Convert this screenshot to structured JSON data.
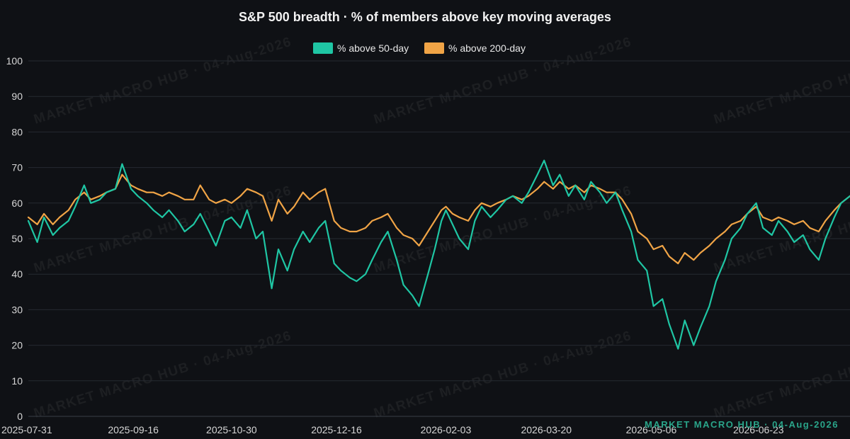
{
  "watermark": "MARKET MACRO HUB · 04-Aug-2026",
  "chart_data": {
    "type": "line",
    "title": "S&P 500 breadth · % of members above key moving averages",
    "xlabel": "",
    "ylabel": "",
    "ylim": [
      0,
      100
    ],
    "yticks": [
      0,
      10,
      20,
      30,
      40,
      50,
      60,
      70,
      80,
      90,
      100
    ],
    "xlim": [
      "2025-07-31",
      "2026-08-03"
    ],
    "xticks": [
      "2025-07-31",
      "2025-09-16",
      "2025-10-30",
      "2025-12-16",
      "2026-02-03",
      "2026-03-20",
      "2026-05-06",
      "2026-06-23"
    ],
    "legend_position": "top-center",
    "grid": true,
    "series": [
      {
        "name": "% above 50-day",
        "color": "#1fc6a4",
        "points": [
          [
            "2025-07-31",
            55
          ],
          [
            "2025-08-04",
            49
          ],
          [
            "2025-08-07",
            56
          ],
          [
            "2025-08-11",
            51
          ],
          [
            "2025-08-14",
            53
          ],
          [
            "2025-08-18",
            55
          ],
          [
            "2025-08-21",
            59
          ],
          [
            "2025-08-25",
            65
          ],
          [
            "2025-08-28",
            60
          ],
          [
            "2025-09-01",
            61
          ],
          [
            "2025-09-04",
            63
          ],
          [
            "2025-09-08",
            64
          ],
          [
            "2025-09-11",
            71
          ],
          [
            "2025-09-15",
            64
          ],
          [
            "2025-09-18",
            62
          ],
          [
            "2025-09-22",
            60
          ],
          [
            "2025-09-25",
            58
          ],
          [
            "2025-09-29",
            56
          ],
          [
            "2025-10-02",
            58
          ],
          [
            "2025-10-06",
            55
          ],
          [
            "2025-10-09",
            52
          ],
          [
            "2025-10-13",
            54
          ],
          [
            "2025-10-16",
            57
          ],
          [
            "2025-10-20",
            52
          ],
          [
            "2025-10-23",
            48
          ],
          [
            "2025-10-27",
            55
          ],
          [
            "2025-10-30",
            56
          ],
          [
            "2025-11-03",
            53
          ],
          [
            "2025-11-06",
            58
          ],
          [
            "2025-11-10",
            50
          ],
          [
            "2025-11-13",
            52
          ],
          [
            "2025-11-17",
            36
          ],
          [
            "2025-11-20",
            47
          ],
          [
            "2025-11-24",
            41
          ],
          [
            "2025-11-27",
            47
          ],
          [
            "2025-12-01",
            52
          ],
          [
            "2025-12-04",
            49
          ],
          [
            "2025-12-08",
            53
          ],
          [
            "2025-12-11",
            55
          ],
          [
            "2025-12-15",
            43
          ],
          [
            "2025-12-18",
            41
          ],
          [
            "2025-12-22",
            39
          ],
          [
            "2025-12-25",
            38
          ],
          [
            "2025-12-29",
            40
          ],
          [
            "2026-01-01",
            44
          ],
          [
            "2026-01-05",
            49
          ],
          [
            "2026-01-08",
            52
          ],
          [
            "2026-01-12",
            44
          ],
          [
            "2026-01-15",
            37
          ],
          [
            "2026-01-19",
            34
          ],
          [
            "2026-01-22",
            31
          ],
          [
            "2026-01-26",
            40
          ],
          [
            "2026-01-29",
            47
          ],
          [
            "2026-02-01",
            55
          ],
          [
            "2026-02-03",
            58
          ],
          [
            "2026-02-06",
            54
          ],
          [
            "2026-02-09",
            50
          ],
          [
            "2026-02-13",
            47
          ],
          [
            "2026-02-16",
            55
          ],
          [
            "2026-02-19",
            59
          ],
          [
            "2026-02-23",
            56
          ],
          [
            "2026-02-26",
            58
          ],
          [
            "2026-03-02",
            61
          ],
          [
            "2026-03-05",
            62
          ],
          [
            "2026-03-09",
            60
          ],
          [
            "2026-03-12",
            63
          ],
          [
            "2026-03-16",
            68
          ],
          [
            "2026-03-19",
            72
          ],
          [
            "2026-03-23",
            65
          ],
          [
            "2026-03-26",
            68
          ],
          [
            "2026-03-30",
            62
          ],
          [
            "2026-04-02",
            65
          ],
          [
            "2026-04-06",
            61
          ],
          [
            "2026-04-09",
            66
          ],
          [
            "2026-04-13",
            63
          ],
          [
            "2026-04-16",
            60
          ],
          [
            "2026-04-20",
            63
          ],
          [
            "2026-04-23",
            58
          ],
          [
            "2026-04-27",
            52
          ],
          [
            "2026-04-30",
            44
          ],
          [
            "2026-05-04",
            41
          ],
          [
            "2026-05-07",
            31
          ],
          [
            "2026-05-11",
            33
          ],
          [
            "2026-05-14",
            26
          ],
          [
            "2026-05-18",
            19
          ],
          [
            "2026-05-21",
            27
          ],
          [
            "2026-05-25",
            20
          ],
          [
            "2026-05-28",
            25
          ],
          [
            "2026-06-01",
            31
          ],
          [
            "2026-06-04",
            38
          ],
          [
            "2026-06-08",
            44
          ],
          [
            "2026-06-11",
            50
          ],
          [
            "2026-06-15",
            53
          ],
          [
            "2026-06-18",
            57
          ],
          [
            "2026-06-22",
            60
          ],
          [
            "2026-06-25",
            53
          ],
          [
            "2026-06-29",
            51
          ],
          [
            "2026-07-02",
            55
          ],
          [
            "2026-07-06",
            52
          ],
          [
            "2026-07-09",
            49
          ],
          [
            "2026-07-13",
            51
          ],
          [
            "2026-07-16",
            47
          ],
          [
            "2026-07-20",
            44
          ],
          [
            "2026-07-23",
            50
          ],
          [
            "2026-07-27",
            56
          ],
          [
            "2026-07-30",
            60
          ],
          [
            "2026-08-03",
            62
          ]
        ]
      },
      {
        "name": "% above 200-day",
        "color": "#f0a446",
        "points": [
          [
            "2025-07-31",
            56
          ],
          [
            "2025-08-04",
            54
          ],
          [
            "2025-08-07",
            57
          ],
          [
            "2025-08-11",
            54
          ],
          [
            "2025-08-14",
            56
          ],
          [
            "2025-08-18",
            58
          ],
          [
            "2025-08-21",
            61
          ],
          [
            "2025-08-25",
            63
          ],
          [
            "2025-08-28",
            61
          ],
          [
            "2025-09-01",
            62
          ],
          [
            "2025-09-04",
            63
          ],
          [
            "2025-09-08",
            64
          ],
          [
            "2025-09-11",
            68
          ],
          [
            "2025-09-15",
            65
          ],
          [
            "2025-09-18",
            64
          ],
          [
            "2025-09-22",
            63
          ],
          [
            "2025-09-25",
            63
          ],
          [
            "2025-09-29",
            62
          ],
          [
            "2025-10-02",
            63
          ],
          [
            "2025-10-06",
            62
          ],
          [
            "2025-10-09",
            61
          ],
          [
            "2025-10-13",
            61
          ],
          [
            "2025-10-16",
            65
          ],
          [
            "2025-10-20",
            61
          ],
          [
            "2025-10-23",
            60
          ],
          [
            "2025-10-27",
            61
          ],
          [
            "2025-10-30",
            60
          ],
          [
            "2025-11-03",
            62
          ],
          [
            "2025-11-06",
            64
          ],
          [
            "2025-11-10",
            63
          ],
          [
            "2025-11-13",
            62
          ],
          [
            "2025-11-17",
            55
          ],
          [
            "2025-11-20",
            61
          ],
          [
            "2025-11-24",
            57
          ],
          [
            "2025-11-27",
            59
          ],
          [
            "2025-12-01",
            63
          ],
          [
            "2025-12-04",
            61
          ],
          [
            "2025-12-08",
            63
          ],
          [
            "2025-12-11",
            64
          ],
          [
            "2025-12-15",
            55
          ],
          [
            "2025-12-18",
            53
          ],
          [
            "2025-12-22",
            52
          ],
          [
            "2025-12-25",
            52
          ],
          [
            "2025-12-29",
            53
          ],
          [
            "2026-01-01",
            55
          ],
          [
            "2026-01-05",
            56
          ],
          [
            "2026-01-08",
            57
          ],
          [
            "2026-01-12",
            53
          ],
          [
            "2026-01-15",
            51
          ],
          [
            "2026-01-19",
            50
          ],
          [
            "2026-01-22",
            48
          ],
          [
            "2026-01-26",
            52
          ],
          [
            "2026-01-29",
            55
          ],
          [
            "2026-02-01",
            58
          ],
          [
            "2026-02-03",
            59
          ],
          [
            "2026-02-06",
            57
          ],
          [
            "2026-02-09",
            56
          ],
          [
            "2026-02-13",
            55
          ],
          [
            "2026-02-16",
            58
          ],
          [
            "2026-02-19",
            60
          ],
          [
            "2026-02-23",
            59
          ],
          [
            "2026-02-26",
            60
          ],
          [
            "2026-03-02",
            61
          ],
          [
            "2026-03-05",
            62
          ],
          [
            "2026-03-09",
            61
          ],
          [
            "2026-03-12",
            62
          ],
          [
            "2026-03-16",
            64
          ],
          [
            "2026-03-19",
            66
          ],
          [
            "2026-03-23",
            64
          ],
          [
            "2026-03-26",
            66
          ],
          [
            "2026-03-30",
            64
          ],
          [
            "2026-04-02",
            65
          ],
          [
            "2026-04-06",
            63
          ],
          [
            "2026-04-09",
            65
          ],
          [
            "2026-04-13",
            64
          ],
          [
            "2026-04-16",
            63
          ],
          [
            "2026-04-20",
            63
          ],
          [
            "2026-04-23",
            61
          ],
          [
            "2026-04-27",
            57
          ],
          [
            "2026-04-30",
            52
          ],
          [
            "2026-05-04",
            50
          ],
          [
            "2026-05-07",
            47
          ],
          [
            "2026-05-11",
            48
          ],
          [
            "2026-05-14",
            45
          ],
          [
            "2026-05-18",
            43
          ],
          [
            "2026-05-21",
            46
          ],
          [
            "2026-05-25",
            44
          ],
          [
            "2026-05-28",
            46
          ],
          [
            "2026-06-01",
            48
          ],
          [
            "2026-06-04",
            50
          ],
          [
            "2026-06-08",
            52
          ],
          [
            "2026-06-11",
            54
          ],
          [
            "2026-06-15",
            55
          ],
          [
            "2026-06-18",
            57
          ],
          [
            "2026-06-22",
            59
          ],
          [
            "2026-06-25",
            56
          ],
          [
            "2026-06-29",
            55
          ],
          [
            "2026-07-02",
            56
          ],
          [
            "2026-07-06",
            55
          ],
          [
            "2026-07-09",
            54
          ],
          [
            "2026-07-13",
            55
          ],
          [
            "2026-07-16",
            53
          ],
          [
            "2026-07-20",
            52
          ],
          [
            "2026-07-23",
            55
          ],
          [
            "2026-07-27",
            58
          ],
          [
            "2026-07-30",
            60
          ],
          [
            "2026-08-03",
            62
          ]
        ]
      }
    ]
  }
}
